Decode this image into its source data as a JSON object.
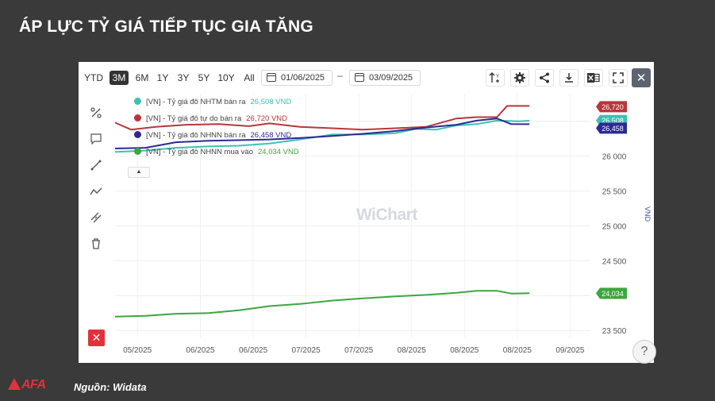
{
  "slide": {
    "title": "ÁP LỰC TỶ GIÁ TIẾP TỤC GIA TĂNG",
    "source": "Nguồn: Widata",
    "logo_text": "AFA"
  },
  "toolbar": {
    "ranges": [
      "YTD",
      "3M",
      "6M",
      "1Y",
      "3Y",
      "5Y",
      "10Y",
      "All"
    ],
    "active_range": "3M",
    "date_from": "01/06/2025",
    "date_separator": "–",
    "date_to": "03/09/2025",
    "icons": [
      "axis-scale-icon",
      "gear-icon",
      "share-icon",
      "download-icon",
      "excel-icon",
      "fullscreen-icon",
      "close-icon"
    ],
    "axis_icon_letter": "Y",
    "close_label": "✕"
  },
  "side_tools": {
    "icons": [
      "percent-icon",
      "comment-icon",
      "line-tool-icon",
      "trend-icon",
      "measure-icon",
      "trash-icon"
    ],
    "delete_all_label": "✕"
  },
  "widgets": {
    "collapse_label": "▲",
    "help_label": "?",
    "watermark": "WiChart"
  },
  "colors": {
    "nhtm": "#3cc1b4",
    "tudo": "#b8363c",
    "nhnn_ban": "#2c2a92",
    "nhnn_mua": "#3ea63e"
  },
  "chart_data": {
    "type": "line",
    "title": "",
    "ylabel": "VND",
    "xlabel": "",
    "ylim": [
      23400,
      26850
    ],
    "yticks": [
      23500,
      24000,
      24500,
      25000,
      25500,
      26000,
      26500
    ],
    "ytick_labels": [
      "23 500",
      "24 000",
      "24 500",
      "25 000",
      "25 500",
      "26 000",
      "26 500"
    ],
    "xticks": [
      "2025-05-01",
      "2025-06-01",
      "2025-06-27",
      "2025-07-23",
      "2025-08-18",
      "2025-09-13",
      "2025-10-09",
      "2025-11-04",
      "2025-11-30"
    ],
    "xtick_labels": [
      "05/2025",
      "06/2025",
      "06/2025",
      "07/2025",
      "07/2025",
      "08/2025",
      "08/2025",
      "08/2025",
      "09/2025"
    ],
    "xlim": [
      "2025-04-20",
      "2025-12-10"
    ],
    "grid": true,
    "legend_position": "top-left",
    "series": [
      {
        "name": "[VN] - Tỷ giá đô NHTM bán ra",
        "last_label": "26,508 VND",
        "axis_badge": "26,508",
        "color_key": "nhtm",
        "x": [
          "2025-04-20",
          "2025-05-05",
          "2025-05-20",
          "2025-06-05",
          "2025-06-20",
          "2025-07-05",
          "2025-07-20",
          "2025-08-05",
          "2025-08-20",
          "2025-09-05",
          "2025-09-15",
          "2025-09-25",
          "2025-10-05",
          "2025-10-15",
          "2025-10-25",
          "2025-11-05",
          "2025-11-10"
        ],
        "y": [
          26060,
          26080,
          26120,
          26140,
          26150,
          26180,
          26240,
          26310,
          26310,
          26330,
          26390,
          26380,
          26440,
          26460,
          26510,
          26500,
          26508
        ]
      },
      {
        "name": "[VN] - Tỷ giá đô tự do bán ra",
        "last_label": "26,720 VND",
        "axis_badge": "26,720",
        "color_key": "tudo",
        "x": [
          "2025-04-20",
          "2025-04-28",
          "2025-05-10",
          "2025-05-25",
          "2025-06-10",
          "2025-06-25",
          "2025-07-05",
          "2025-07-20",
          "2025-08-05",
          "2025-08-20",
          "2025-09-05",
          "2025-09-20",
          "2025-10-05",
          "2025-10-15",
          "2025-10-25",
          "2025-10-30",
          "2025-11-10"
        ],
        "y": [
          26480,
          26380,
          26420,
          26450,
          26460,
          26430,
          26470,
          26420,
          26400,
          26380,
          26400,
          26420,
          26540,
          26560,
          26560,
          26720,
          26720
        ]
      },
      {
        "name": "[VN] - Tỷ giá đô NHNN bán ra",
        "last_label": "26,458 VND",
        "axis_badge": "26,458",
        "color_key": "nhnn_ban",
        "x": [
          "2025-04-20",
          "2025-05-05",
          "2025-05-20",
          "2025-06-05",
          "2025-06-20",
          "2025-07-05",
          "2025-07-20",
          "2025-08-05",
          "2025-08-20",
          "2025-09-05",
          "2025-09-20",
          "2025-10-05",
          "2025-10-15",
          "2025-10-25",
          "2025-11-01",
          "2025-11-10"
        ],
        "y": [
          26110,
          26120,
          26200,
          26220,
          26230,
          26240,
          26260,
          26290,
          26320,
          26360,
          26410,
          26450,
          26510,
          26540,
          26460,
          26458
        ]
      },
      {
        "name": "[VN] - Tỷ giá đô NHNN mua vào",
        "last_label": "24,034 VND",
        "axis_badge": "24,034",
        "color_key": "nhnn_mua",
        "x": [
          "2025-04-20",
          "2025-05-05",
          "2025-05-20",
          "2025-06-05",
          "2025-06-20",
          "2025-07-05",
          "2025-07-20",
          "2025-08-05",
          "2025-08-20",
          "2025-09-05",
          "2025-09-20",
          "2025-10-05",
          "2025-10-15",
          "2025-10-25",
          "2025-11-01",
          "2025-11-10"
        ],
        "y": [
          23700,
          23710,
          23740,
          23750,
          23790,
          23850,
          23880,
          23930,
          23960,
          23990,
          24010,
          24040,
          24070,
          24070,
          24030,
          24034
        ]
      }
    ]
  }
}
